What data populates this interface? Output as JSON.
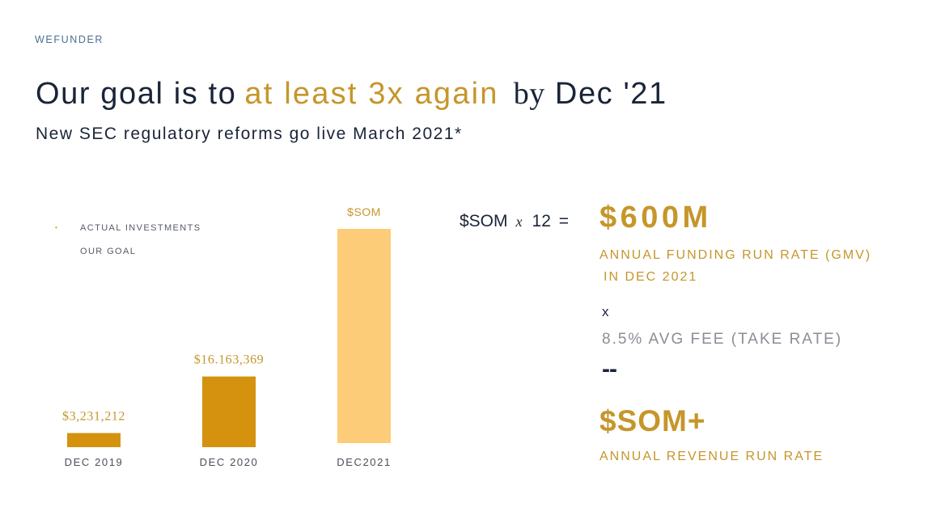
{
  "header": {
    "brand": "WEFUNDER",
    "title_part1": "Our goal is to",
    "title_accent": "at least 3x again",
    "title_by": "by",
    "title_part2": "Dec '21",
    "subtitle": "New SEC regulatory reforms go live March 2021*"
  },
  "legend": {
    "items": [
      {
        "label": "ACTUAL INVESTMENTS",
        "bullet": "•"
      },
      {
        "label": "OUR GOAL",
        "bullet": ""
      }
    ]
  },
  "chart_data": {
    "type": "bar",
    "title": "",
    "xlabel": "",
    "ylabel": "",
    "categories": [
      "DEC 2019",
      "DEC 2020",
      "DEC2021"
    ],
    "values": [
      3231212,
      16163369,
      null
    ],
    "value_labels": [
      "$3,231,212",
      "$16.163,369",
      "$SOM"
    ],
    "series_types": [
      "actual",
      "actual",
      "goal"
    ],
    "goal_bar_estimated_value": 49000000,
    "ylim": [
      0,
      49000000
    ],
    "grid": false,
    "colors": {
      "actual": "#d4920f",
      "goal": "#fccc78"
    }
  },
  "equation": {
    "lhs_term": "$SOM",
    "operator": "x",
    "multiplier": "12",
    "equals": "=",
    "result": "$600M",
    "caption_line1": "ANNUAL FUNDING RUN RATE (GMV)",
    "caption_line2": "IN DEC 2021",
    "times": "x",
    "fee": "8.5% AVG FEE (TAKE RATE)",
    "minus": "--",
    "final_value": "$SOM+",
    "final_caption": "ANNUAL REVENUE RUN RATE"
  },
  "colors": {
    "navy": "#1a2438",
    "gold": "#c5962a",
    "bar_actual": "#d4920f",
    "bar_goal": "#fccc78",
    "brand_blue": "#4a6f8f",
    "muted_gray": "#8a8e96"
  }
}
